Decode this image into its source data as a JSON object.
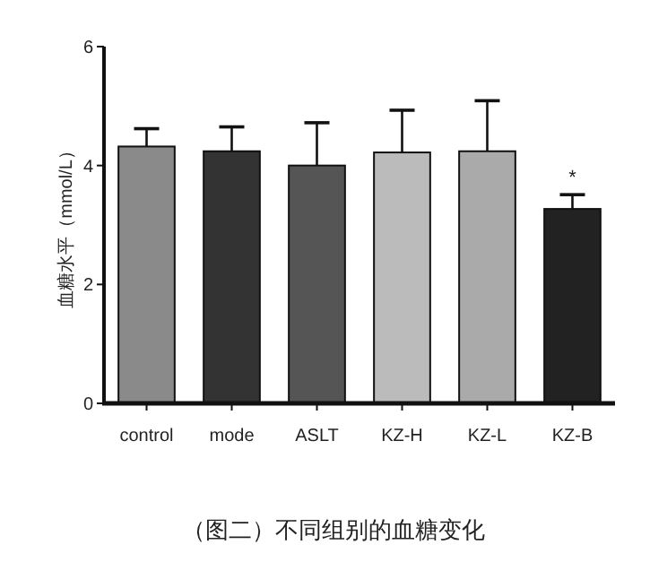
{
  "chart_data": {
    "type": "bar",
    "title": "（图二）不同组别的血糖变化",
    "ylabel": "血糖水平（mmol/L）",
    "categories": [
      "control",
      "mode",
      "ASLT",
      "KZ-H",
      "KZ-L",
      "KZ-B"
    ],
    "values": [
      4.32,
      4.24,
      4.0,
      4.22,
      4.24,
      3.27
    ],
    "errors": [
      [
        4.32,
        4.62
      ],
      [
        4.24,
        4.65
      ],
      [
        4.0,
        4.72
      ],
      [
        4.22,
        4.93
      ],
      [
        4.24,
        5.09
      ],
      [
        3.27,
        3.51
      ]
    ],
    "colors": [
      "#8a8a8a",
      "#333333",
      "#555555",
      "#bbbbbb",
      "#aaaaaa",
      "#222222"
    ],
    "ylim": [
      0,
      6
    ],
    "yticks": [
      0,
      2,
      4,
      6
    ],
    "annotations": [
      "*"
    ]
  }
}
